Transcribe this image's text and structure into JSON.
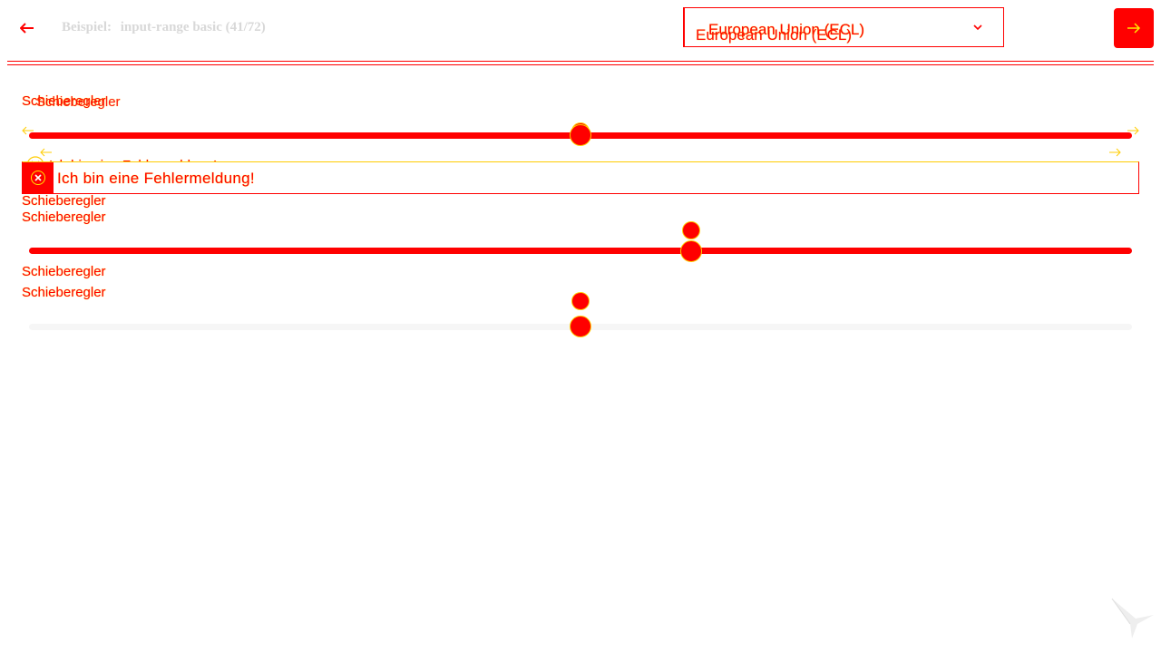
{
  "header": {
    "title_prefix": "Beispiel:",
    "title_name": "input-range basic",
    "title_count": "(41/72)",
    "select": {
      "value": "European Union (ECL)"
    }
  },
  "slider1": {
    "label": "Schieberegler",
    "label_overlay": "Schieberegler",
    "value": 0.5
  },
  "error": {
    "message_ghost": "Ich bin eine Fehlermeldung!",
    "message": "Ich bin eine Fehlermeldung!"
  },
  "slider2": {
    "label": "Schieberegler",
    "label_overlay": "Schieberegler",
    "value": 0.6
  },
  "slider3": {
    "label": "Schieberegler",
    "label_overlay": "Schieberegler",
    "value": 0.5
  },
  "colors": {
    "accent": "#ff0000",
    "outline": "#ffe600",
    "muted": "#d8d8d8",
    "track_light": "#f6f6f6"
  },
  "icons": {
    "back": "arrow-left-icon",
    "next": "arrow-right-icon",
    "chevron": "chevron-down-icon",
    "error": "close-circle-icon",
    "logo": "bird-logo-icon"
  }
}
